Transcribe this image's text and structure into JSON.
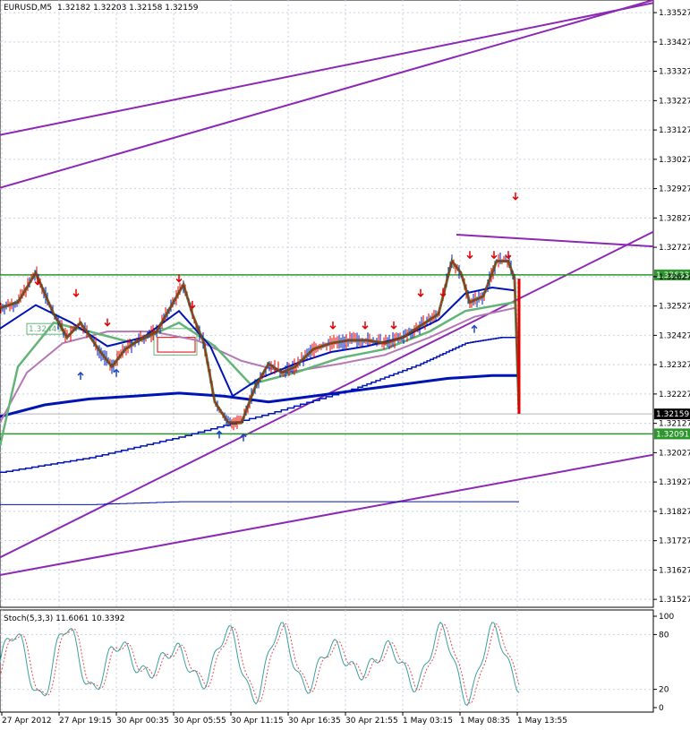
{
  "header": {
    "symbol": "EURUSD,M5",
    "ohlc": "1.32182 1.32203 1.32158 1.32159"
  },
  "stoch_header": "Stoch(5,3,3) 11.6061 10.3392",
  "colors": {
    "grid": "#c8d2de",
    "axis": "#000000",
    "ma_blue": "#0014b4",
    "ma_green": "#64b478",
    "ma_violet": "#b478b4",
    "trend": "#8c28b4",
    "level": "#2d962d",
    "arrow_down": "#e10000",
    "arrow_up": "#1e46c8",
    "bid_label_bg": "#000000"
  },
  "chart_data": {
    "type": "line",
    "series_type": "candlestick price with indicators",
    "price_ticks": [
      "1.31527",
      "1.31627",
      "1.31727",
      "1.31827",
      "1.31927",
      "1.32027",
      "1.32127",
      "1.32227",
      "1.32327",
      "1.32427",
      "1.32527",
      "1.32627",
      "1.32727",
      "1.32827",
      "1.32927",
      "1.33027",
      "1.33127",
      "1.33227",
      "1.33327",
      "1.33427",
      "1.33527"
    ],
    "time_ticks": [
      "27 Apr 2012",
      "27 Apr 19:15",
      "30 Apr 00:35",
      "30 Apr 05:55",
      "30 Apr 11:15",
      "30 Apr 16:35",
      "30 Apr 21:55",
      "1 May 03:15",
      "1 May 08:35",
      "1 May 13:55"
    ],
    "ylim": [
      1.315,
      1.3357
    ],
    "current_price": "1.32159",
    "levels": [
      {
        "price": 1.32633,
        "label": "1.32633"
      },
      {
        "price": 1.32091,
        "label": "1.32091"
      }
    ],
    "box_label": "1.32449",
    "price_path": [
      [
        0,
        1.3252
      ],
      [
        20,
        1.3254
      ],
      [
        40,
        1.3264
      ],
      [
        60,
        1.325
      ],
      [
        75,
        1.3242
      ],
      [
        90,
        1.3247
      ],
      [
        110,
        1.3238
      ],
      [
        125,
        1.3232
      ],
      [
        140,
        1.3238
      ],
      [
        160,
        1.3242
      ],
      [
        175,
        1.3244
      ],
      [
        190,
        1.3252
      ],
      [
        205,
        1.326
      ],
      [
        215,
        1.325
      ],
      [
        228,
        1.324
      ],
      [
        240,
        1.322
      ],
      [
        255,
        1.3213
      ],
      [
        270,
        1.3213
      ],
      [
        285,
        1.3225
      ],
      [
        300,
        1.3233
      ],
      [
        315,
        1.323
      ],
      [
        330,
        1.3232
      ],
      [
        350,
        1.3238
      ],
      [
        370,
        1.324
      ],
      [
        390,
        1.3241
      ],
      [
        410,
        1.3241
      ],
      [
        430,
        1.324
      ],
      [
        450,
        1.3242
      ],
      [
        470,
        1.3246
      ],
      [
        490,
        1.325
      ],
      [
        505,
        1.3268
      ],
      [
        515,
        1.3264
      ],
      [
        525,
        1.3254
      ],
      [
        540,
        1.3256
      ],
      [
        555,
        1.3268
      ],
      [
        568,
        1.3268
      ],
      [
        575,
        1.3262
      ],
      [
        580,
        1.3216
      ]
    ],
    "ma_fast": [
      [
        0,
        1.3245
      ],
      [
        40,
        1.3253
      ],
      [
        80,
        1.3247
      ],
      [
        120,
        1.3239
      ],
      [
        160,
        1.3242
      ],
      [
        200,
        1.3251
      ],
      [
        235,
        1.3239
      ],
      [
        260,
        1.3222
      ],
      [
        290,
        1.3228
      ],
      [
        330,
        1.3233
      ],
      [
        370,
        1.3237
      ],
      [
        410,
        1.3239
      ],
      [
        450,
        1.3242
      ],
      [
        490,
        1.3248
      ],
      [
        520,
        1.3257
      ],
      [
        550,
        1.3259
      ],
      [
        575,
        1.3258
      ]
    ],
    "ma_mid": [
      [
        0,
        1.3205
      ],
      [
        20,
        1.3232
      ],
      [
        60,
        1.3247
      ],
      [
        100,
        1.3244
      ],
      [
        150,
        1.324
      ],
      [
        200,
        1.3247
      ],
      [
        240,
        1.3239
      ],
      [
        280,
        1.3226
      ],
      [
        330,
        1.323
      ],
      [
        380,
        1.3235
      ],
      [
        430,
        1.3238
      ],
      [
        480,
        1.3244
      ],
      [
        520,
        1.3251
      ],
      [
        575,
        1.3254
      ]
    ],
    "ma_violet": [
      [
        0,
        1.3213
      ],
      [
        30,
        1.323
      ],
      [
        70,
        1.324
      ],
      [
        120,
        1.3244
      ],
      [
        170,
        1.3244
      ],
      [
        220,
        1.3241
      ],
      [
        270,
        1.3234
      ],
      [
        320,
        1.323
      ],
      [
        380,
        1.3233
      ],
      [
        430,
        1.3236
      ],
      [
        480,
        1.3242
      ],
      [
        530,
        1.3249
      ],
      [
        575,
        1.3252
      ]
    ],
    "ma_slow": [
      [
        0,
        1.3215
      ],
      [
        50,
        1.3219
      ],
      [
        100,
        1.3221
      ],
      [
        150,
        1.3222
      ],
      [
        200,
        1.3223
      ],
      [
        250,
        1.3222
      ],
      [
        300,
        1.322
      ],
      [
        350,
        1.3222
      ],
      [
        400,
        1.3224
      ],
      [
        450,
        1.3226
      ],
      [
        500,
        1.3228
      ],
      [
        550,
        1.3229
      ],
      [
        580,
        1.3229
      ]
    ],
    "ma_step1": [
      [
        0,
        1.3196
      ],
      [
        100,
        1.3201
      ],
      [
        200,
        1.3208
      ],
      [
        300,
        1.3216
      ],
      [
        400,
        1.3225
      ],
      [
        470,
        1.3233
      ],
      [
        520,
        1.324
      ],
      [
        560,
        1.3242
      ],
      [
        580,
        1.3242
      ]
    ],
    "ma_step2": [
      [
        0,
        1.3185
      ],
      [
        100,
        1.3185
      ],
      [
        200,
        1.3186
      ],
      [
        300,
        1.3186
      ],
      [
        400,
        1.3186
      ],
      [
        500,
        1.3186
      ],
      [
        580,
        1.3186
      ]
    ],
    "trend_lines": [
      [
        [
          0,
          1.3311
        ],
        [
          730,
          1.3356
        ]
      ],
      [
        [
          0,
          1.3293
        ],
        [
          730,
          1.3357
        ]
      ],
      [
        [
          0,
          1.3167
        ],
        [
          730,
          1.3278
        ]
      ],
      [
        [
          0,
          1.3161
        ],
        [
          730,
          1.3202
        ]
      ],
      [
        [
          510,
          1.3277
        ],
        [
          730,
          1.3273
        ]
      ]
    ],
    "arrows_down": [
      [
        42,
        1.326
      ],
      [
        85,
        1.3256
      ],
      [
        120,
        1.3246
      ],
      [
        200,
        1.3261
      ],
      [
        215,
        1.3252
      ],
      [
        372,
        1.3245
      ],
      [
        408,
        1.3245
      ],
      [
        440,
        1.3245
      ],
      [
        470,
        1.3256
      ],
      [
        495,
        1.3256
      ],
      [
        525,
        1.3269
      ],
      [
        552,
        1.3269
      ],
      [
        568,
        1.3269
      ],
      [
        576,
        1.3289
      ]
    ],
    "arrows_up": [
      [
        90,
        1.323
      ],
      [
        130,
        1.3231
      ],
      [
        245,
        1.321
      ],
      [
        272,
        1.3209
      ],
      [
        530,
        1.3246
      ]
    ],
    "stoch_ticks": [
      "100",
      "80",
      "20",
      "0"
    ],
    "stoch_levels": [
      80,
      20
    ]
  }
}
